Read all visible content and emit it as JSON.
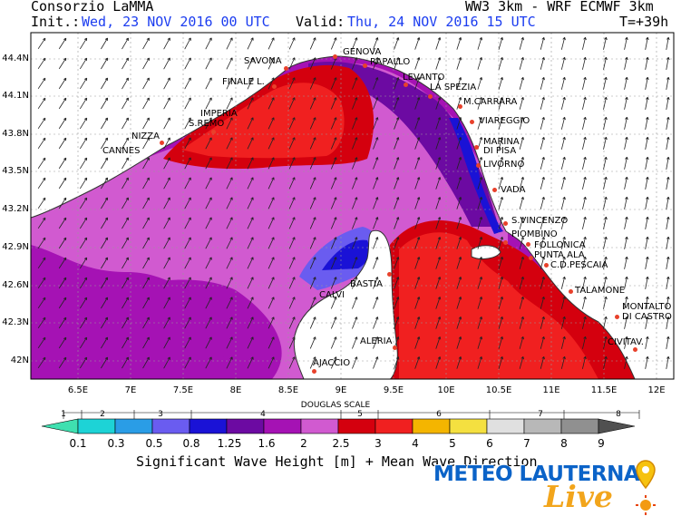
{
  "header": {
    "org": "Consorzio LaMMA",
    "model": "WW3 3km - WRF ECMWF 3km",
    "init_label": "Init.:",
    "init_value": "Wed, 23 NOV 2016  00 UTC",
    "valid_label": "Valid:",
    "valid_value": "Thu, 24 NOV 2016  15 UTC",
    "forecast_step": "T=+39h"
  },
  "axes": {
    "lat_ticks": [
      "44.4N",
      "44.1N",
      "43.8N",
      "43.5N",
      "43.2N",
      "42.9N",
      "42.6N",
      "42.3N",
      "42N"
    ],
    "lon_ticks": [
      "6.5E",
      "7E",
      "7.5E",
      "8E",
      "8.5E",
      "9E",
      "9.5E",
      "10E",
      "10.5E",
      "11E",
      "11.5E",
      "12E"
    ]
  },
  "places": [
    {
      "name": "GENOVA"
    },
    {
      "name": "SAVONA"
    },
    {
      "name": "RAPALLO"
    },
    {
      "name": "FINALE L."
    },
    {
      "name": "LEVANTO"
    },
    {
      "name": "LA SPEZIA"
    },
    {
      "name": "IMPERIA"
    },
    {
      "name": "S.REMO"
    },
    {
      "name": "M.CARRARA"
    },
    {
      "name": "NIZZA"
    },
    {
      "name": "VIAREGGIO"
    },
    {
      "name": "CANNES"
    },
    {
      "name": "MARINA"
    },
    {
      "name": "DI PISA"
    },
    {
      "name": "LIVORNO"
    },
    {
      "name": "VADA"
    },
    {
      "name": "S.VINCENZO"
    },
    {
      "name": "PIOMBINO"
    },
    {
      "name": "FOLLONICA"
    },
    {
      "name": "PUNTA ALA"
    },
    {
      "name": "C.D.PESCAIA"
    },
    {
      "name": "BASTIA"
    },
    {
      "name": "CALVI"
    },
    {
      "name": "TALAMONE"
    },
    {
      "name": "MONTALTO"
    },
    {
      "name": "DI CASTRO"
    },
    {
      "name": "ALERIA"
    },
    {
      "name": "CIVITAV."
    },
    {
      "name": "AJACCIO"
    }
  ],
  "legend": {
    "scale_title": "DOUGLAS SCALE",
    "douglas_numbers": [
      "1",
      "2",
      "3",
      "4",
      "5",
      "6",
      "7",
      "8"
    ],
    "value_labels": [
      "0.1",
      "0.3",
      "0.5",
      "0.8",
      "1.25",
      "1.6",
      "2",
      "2.5",
      "3",
      "4",
      "5",
      "6",
      "7",
      "8",
      "9"
    ],
    "colors": [
      "#3fe0b0",
      "#1dd3d6",
      "#2a9de6",
      "#6a5cf0",
      "#1a12d6",
      "#6c0aa2",
      "#a512b4",
      "#d15ad0",
      "#d4000e",
      "#f02020",
      "#f4b500",
      "#f4e040",
      "#e0e0e0",
      "#b8b8b8",
      "#909090"
    ],
    "caption": "Significant Wave Height [m] + Mean Wave Direction"
  },
  "logo": {
    "line1": "METEO LAUTERNA",
    "line2": "Live"
  }
}
